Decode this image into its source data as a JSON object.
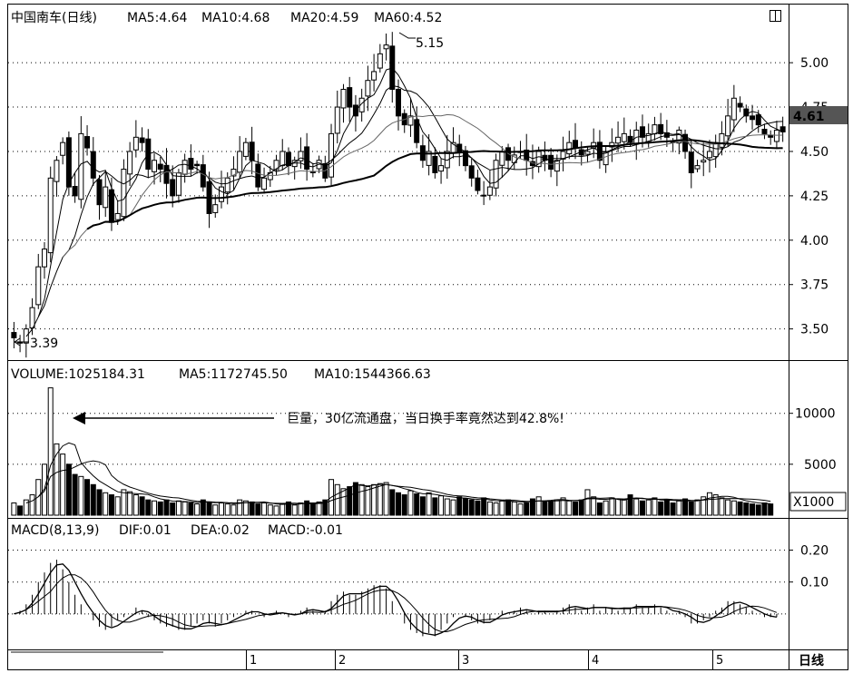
{
  "header": {
    "price": {
      "stock_name": "中国南车(日线)",
      "ma5": "MA5:4.64",
      "ma10": "MA10:4.68",
      "ma20": "MA20:4.59",
      "ma60": "MA60:4.52"
    },
    "volume": {
      "label": "VOLUME:1025184.31",
      "ma5": "MA5:1172745.50",
      "ma10": "MA10:1544366.63"
    },
    "macd": {
      "label": "MACD(8,13,9)",
      "dif": "DIF:0.01",
      "dea": "DEA:0.02",
      "macd": "MACD:-0.01"
    }
  },
  "annotations": {
    "high": "5.15",
    "low": "3.39",
    "volume_note": "巨量，30亿流通盘，当日换手率竟然达到42.8%!",
    "current_price": "4.61",
    "volume_unit": "X1000",
    "period": "日线"
  },
  "axes": {
    "price_ticks": [
      "5.00",
      "4.75",
      "4.50",
      "4.25",
      "4.00",
      "3.75",
      "3.50"
    ],
    "volume_ticks": [
      "10000",
      "5000"
    ],
    "macd_ticks": [
      "0.20",
      "0.10"
    ],
    "months": [
      "1",
      "2",
      "3",
      "4",
      "5"
    ]
  },
  "colors": {
    "background": "#ffffff",
    "foreground": "#000000",
    "price_tag_bg": "#555555",
    "price_tag_text": "#ffffff"
  },
  "chart_data": [
    {
      "type": "candlestick",
      "panel": "price",
      "ylim": [
        3.35,
        5.2
      ],
      "grid": true,
      "title": "中国南车(日线)",
      "price_marks": {
        "high": 5.15,
        "low": 3.39,
        "last": 4.61
      },
      "close_path": [
        3.45,
        3.42,
        3.5,
        3.62,
        3.85,
        3.95,
        4.35,
        4.45,
        4.55,
        4.3,
        4.25,
        4.6,
        4.52,
        4.35,
        4.2,
        4.3,
        4.1,
        4.15,
        4.4,
        4.5,
        4.58,
        4.55,
        4.4,
        4.45,
        4.4,
        4.32,
        4.25,
        4.38,
        4.45,
        4.4,
        4.42,
        4.3,
        4.15,
        4.2,
        4.3,
        4.35,
        4.4,
        4.5,
        4.55,
        4.45,
        4.3,
        4.35,
        4.38,
        4.45,
        4.5,
        4.42,
        4.45,
        4.5,
        4.4,
        4.38,
        4.45,
        4.35,
        4.6,
        4.75,
        4.85,
        4.75,
        4.7,
        4.8,
        4.9,
        4.95,
        5.05,
        5.1,
        4.85,
        4.7,
        4.65,
        4.7,
        4.55,
        4.45,
        4.5,
        4.38,
        4.42,
        4.5,
        4.55,
        4.5,
        4.42,
        4.35,
        4.28,
        4.25,
        4.3,
        4.45,
        4.5,
        4.45,
        4.48,
        4.5,
        4.45,
        4.42,
        4.5,
        4.45,
        4.4,
        4.45,
        4.5,
        4.55,
        4.52,
        4.48,
        4.5,
        4.55,
        4.45,
        4.5,
        4.55,
        4.58,
        4.6,
        4.55,
        4.62,
        4.58,
        4.6,
        4.65,
        4.6,
        4.58,
        4.55,
        4.62,
        4.5,
        4.38,
        4.42,
        4.45,
        4.5,
        4.55,
        4.6,
        4.7,
        4.8,
        4.75,
        4.7,
        4.68,
        4.65,
        4.6,
        4.58,
        4.62,
        4.61
      ],
      "moving_averages": [
        {
          "name": "MA5",
          "value": 4.64
        },
        {
          "name": "MA10",
          "value": 4.68
        },
        {
          "name": "MA20",
          "value": 4.59
        },
        {
          "name": "MA60",
          "value": 4.52
        }
      ]
    },
    {
      "type": "bar",
      "panel": "volume",
      "unit": "X1000",
      "ylim": [
        0,
        13000
      ],
      "values": [
        1200,
        900,
        1500,
        2000,
        3500,
        5000,
        12500,
        7000,
        6000,
        5000,
        4000,
        3800,
        3500,
        3000,
        2500,
        2200,
        2000,
        1800,
        2500,
        2300,
        2000,
        1800,
        1500,
        1400,
        1300,
        1500,
        1200,
        1400,
        1300,
        1200,
        1100,
        1500,
        1300,
        1000,
        1200,
        1100,
        1000,
        1500,
        1400,
        1300,
        1100,
        1200,
        1000,
        900,
        1100,
        1300,
        1000,
        1200,
        1400,
        1100,
        1300,
        1500,
        3500,
        3000,
        2600,
        2800,
        3200,
        3000,
        2800,
        3000,
        3100,
        3200,
        2500,
        2200,
        2000,
        2400,
        2100,
        1800,
        2200,
        1700,
        1900,
        1600,
        1500,
        1800,
        1600,
        1500,
        1400,
        1700,
        1300,
        1200,
        1400,
        1500,
        1300,
        1100,
        1200,
        1600,
        1800,
        1400,
        1300,
        1500,
        1700,
        1400,
        1300,
        1500,
        2500,
        1800,
        1200,
        1400,
        1700,
        1600,
        1500,
        2000,
        1600,
        1400,
        1500,
        1700,
        1300,
        1500,
        1200,
        1400,
        1600,
        1300,
        1500,
        1800,
        2200,
        2000,
        1700,
        1500,
        1400,
        1300,
        1200,
        1100,
        1000,
        1200,
        1100
      ],
      "ma5": 1172745.5,
      "ma10": 1544366.63,
      "last": 1025184.31
    },
    {
      "type": "bar",
      "panel": "macd",
      "ylim": [
        -0.1,
        0.23
      ],
      "values": [
        0.0,
        0.01,
        0.03,
        0.06,
        0.1,
        0.13,
        0.16,
        0.17,
        0.14,
        0.1,
        0.06,
        0.03,
        0.0,
        -0.02,
        -0.04,
        -0.05,
        -0.04,
        -0.02,
        -0.01,
        0.0,
        0.02,
        0.01,
        -0.01,
        -0.02,
        -0.03,
        -0.04,
        -0.04,
        -0.05,
        -0.05,
        -0.04,
        -0.03,
        -0.02,
        -0.03,
        -0.04,
        -0.03,
        -0.02,
        -0.01,
        0.0,
        0.01,
        0.01,
        0.0,
        -0.01,
        0.0,
        0.01,
        0.0,
        -0.01,
        0.0,
        0.01,
        0.02,
        0.01,
        0.0,
        0.01,
        0.04,
        0.06,
        0.07,
        0.06,
        0.06,
        0.07,
        0.08,
        0.09,
        0.09,
        0.08,
        0.04,
        0.0,
        -0.03,
        -0.05,
        -0.06,
        -0.07,
        -0.06,
        -0.07,
        -0.05,
        -0.03,
        -0.01,
        0.0,
        -0.01,
        -0.02,
        -0.03,
        -0.03,
        -0.02,
        0.0,
        0.01,
        0.0,
        0.01,
        0.02,
        0.01,
        0.0,
        0.01,
        0.01,
        0.0,
        0.01,
        0.02,
        0.03,
        0.02,
        0.01,
        0.02,
        0.03,
        0.01,
        0.02,
        0.02,
        0.01,
        0.02,
        0.02,
        0.03,
        0.02,
        0.02,
        0.03,
        0.02,
        0.01,
        0.0,
        0.01,
        -0.01,
        -0.03,
        -0.03,
        -0.02,
        -0.01,
        0.01,
        0.02,
        0.04,
        0.04,
        0.03,
        0.02,
        0.01,
        0.0,
        -0.01,
        -0.01,
        -0.01
      ],
      "dif": 0.01,
      "dea": 0.02,
      "macd": -0.01
    }
  ]
}
